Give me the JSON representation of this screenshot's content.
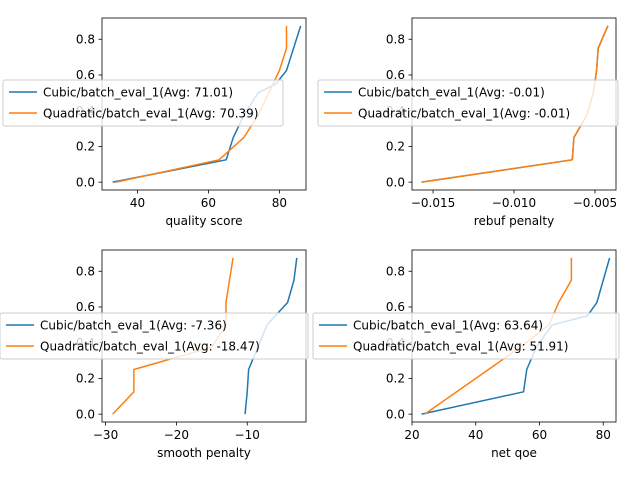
{
  "chart_data": [
    {
      "type": "line",
      "xlabel": "quality score",
      "ylabel": "",
      "xlim": [
        30,
        87.5
      ],
      "ylim": [
        -0.044,
        0.919
      ],
      "xticks": [
        40,
        60,
        80
      ],
      "xtick_labels": [
        "40",
        "60",
        "80"
      ],
      "yticks": [
        0.0,
        0.2,
        0.4,
        0.6,
        0.8
      ],
      "ytick_labels": [
        "0.0",
        "0.2",
        "0.4",
        "0.6",
        "0.8"
      ],
      "grid": false,
      "legend_position": "center-left",
      "series": [
        {
          "name": "Cubic/batch_eval_1(Avg: 71.01)",
          "color": "#1f77b4",
          "points": [
            [
              33,
              0
            ],
            [
              65,
              0.125
            ],
            [
              67,
              0.25
            ],
            [
              70,
              0.375
            ],
            [
              74,
              0.5
            ],
            [
              79,
              0.55
            ],
            [
              82,
              0.625
            ],
            [
              84,
              0.75
            ],
            [
              86,
              0.875
            ]
          ]
        },
        {
          "name": "Quadratic/batch_eval_1(Avg: 70.39)",
          "color": "#ff7f0e",
          "points": [
            [
              34,
              0
            ],
            [
              63,
              0.125
            ],
            [
              70,
              0.25
            ],
            [
              74,
              0.375
            ],
            [
              77,
              0.5
            ],
            [
              80,
              0.625
            ],
            [
              82,
              0.75
            ],
            [
              82,
              0.875
            ]
          ]
        }
      ]
    },
    {
      "type": "line",
      "xlabel": "rebuf penalty",
      "ylabel": "",
      "xlim": [
        -0.0163,
        -0.0037
      ],
      "ylim": [
        -0.044,
        0.919
      ],
      "xticks": [
        -0.015,
        -0.01,
        -0.005
      ],
      "xtick_labels": [
        "−0.015",
        "−0.010",
        "−0.005"
      ],
      "yticks": [
        0.0,
        0.2,
        0.4,
        0.6,
        0.8
      ],
      "ytick_labels": [
        "0.0",
        "0.2",
        "0.4",
        "0.6",
        "0.8"
      ],
      "grid": false,
      "legend_position": "center",
      "series": [
        {
          "name": "Cubic/batch_eval_1(Avg: -0.01)",
          "color": "#1f77b4",
          "points": [
            [
              -0.0157,
              0
            ],
            [
              -0.0064,
              0.125
            ],
            [
              -0.0063,
              0.25
            ],
            [
              -0.0055,
              0.375
            ],
            [
              -0.0051,
              0.5
            ],
            [
              -0.0049,
              0.625
            ],
            [
              -0.0048,
              0.75
            ],
            [
              -0.0042,
              0.875
            ]
          ]
        },
        {
          "name": "Quadratic/batch_eval_1(Avg: -0.01)",
          "color": "#ff7f0e",
          "points": [
            [
              -0.0157,
              0
            ],
            [
              -0.0064,
              0.125
            ],
            [
              -0.0063,
              0.25
            ],
            [
              -0.0055,
              0.375
            ],
            [
              -0.0051,
              0.5
            ],
            [
              -0.0049,
              0.625
            ],
            [
              -0.0048,
              0.75
            ],
            [
              -0.0042,
              0.875
            ]
          ]
        }
      ]
    },
    {
      "type": "line",
      "xlabel": "smooth penalty",
      "ylabel": "",
      "xlim": [
        -30.5,
        -1.7
      ],
      "ylim": [
        -0.044,
        0.919
      ],
      "xticks": [
        -30,
        -20,
        -10
      ],
      "xtick_labels": [
        "−30",
        "−20",
        "−10"
      ],
      "yticks": [
        0.0,
        0.2,
        0.4,
        0.6,
        0.8
      ],
      "ytick_labels": [
        "0.0",
        "0.2",
        "0.4",
        "0.6",
        "0.8"
      ],
      "grid": false,
      "legend_position": "center",
      "series": [
        {
          "name": "Cubic/batch_eval_1(Avg: -7.36)",
          "color": "#1f77b4",
          "points": [
            [
              -10.3,
              0
            ],
            [
              -10,
              0.125
            ],
            [
              -9.8,
              0.25
            ],
            [
              -8.5,
              0.375
            ],
            [
              -7.2,
              0.5
            ],
            [
              -4.3,
              0.625
            ],
            [
              -3.4,
              0.75
            ],
            [
              -3,
              0.875
            ]
          ]
        },
        {
          "name": "Quadratic/batch_eval_1(Avg: -18.47)",
          "color": "#ff7f0e",
          "points": [
            [
              -29,
              0
            ],
            [
              -26,
              0.125
            ],
            [
              -26,
              0.25
            ],
            [
              -15,
              0.375
            ],
            [
              -13,
              0.5
            ],
            [
              -13,
              0.625
            ],
            [
              -12.5,
              0.75
            ],
            [
              -12,
              0.875
            ]
          ]
        }
      ]
    },
    {
      "type": "line",
      "xlabel": "net qoe",
      "ylabel": "",
      "xlim": [
        20,
        84
      ],
      "ylim": [
        -0.044,
        0.919
      ],
      "xticks": [
        20,
        40,
        60,
        80
      ],
      "xtick_labels": [
        "20",
        "40",
        "60",
        "80"
      ],
      "yticks": [
        0.0,
        0.2,
        0.4,
        0.6,
        0.8
      ],
      "ytick_labels": [
        "0.0",
        "0.2",
        "0.4",
        "0.6",
        "0.8"
      ],
      "grid": false,
      "legend_position": "center",
      "series": [
        {
          "name": "Cubic/batch_eval_1(Avg: 63.64)",
          "color": "#1f77b4",
          "points": [
            [
              23,
              0
            ],
            [
              55,
              0.125
            ],
            [
              56,
              0.25
            ],
            [
              59,
              0.375
            ],
            [
              64,
              0.5
            ],
            [
              75,
              0.55
            ],
            [
              78,
              0.625
            ],
            [
              80,
              0.75
            ],
            [
              82,
              0.875
            ]
          ]
        },
        {
          "name": "Quadratic/batch_eval_1(Avg: 51.91)",
          "color": "#ff7f0e",
          "points": [
            [
              24,
              0
            ],
            [
              44,
              0.25
            ],
            [
              54,
              0.375
            ],
            [
              63,
              0.5
            ],
            [
              66,
              0.625
            ],
            [
              70,
              0.75
            ],
            [
              70,
              0.875
            ]
          ]
        }
      ]
    }
  ]
}
